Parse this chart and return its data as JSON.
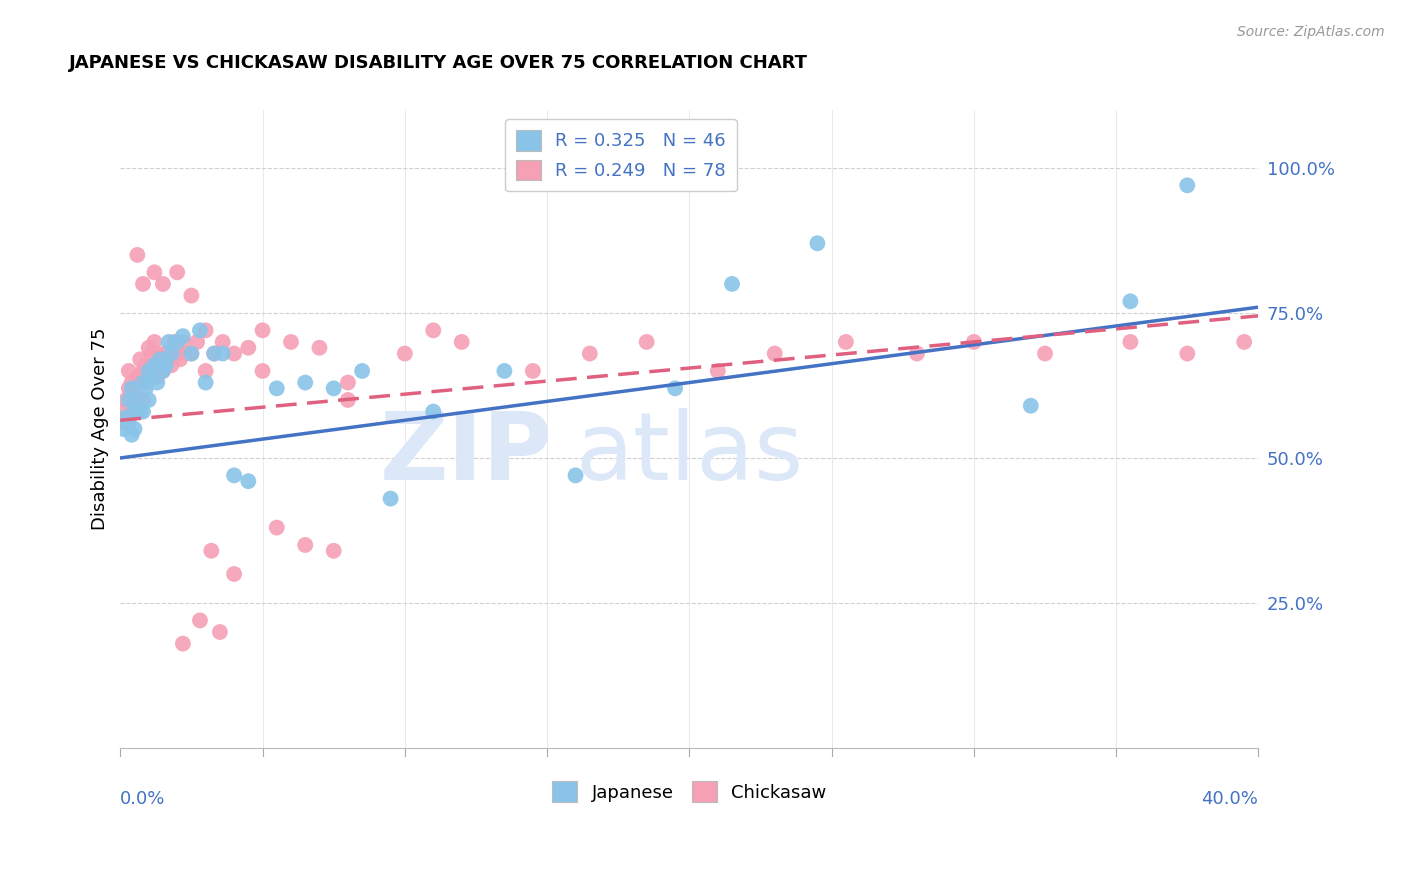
{
  "title": "JAPANESE VS CHICKASAW DISABILITY AGE OVER 75 CORRELATION CHART",
  "source": "Source: ZipAtlas.com",
  "ylabel": "Disability Age Over 75",
  "japanese_color": "#89c4e8",
  "chickasaw_color": "#f5a0b5",
  "japanese_line_color": "#4472c4",
  "chickasaw_line_color": "#e06080",
  "chickasaw_line_dash": [
    6,
    3
  ],
  "watermark_zip_color": "#dce8f8",
  "watermark_atlas_color": "#dce8f8",
  "xmin": 0.0,
  "xmax": 0.4,
  "ymin": 0.0,
  "ymax": 1.1,
  "ytick_values": [
    0.25,
    0.5,
    0.75,
    1.0
  ],
  "ytick_labels": [
    "25.0%",
    "50.0%",
    "75.0%",
    "100.0%"
  ],
  "grid_color": "#d0d0d0",
  "jp_line_x0": 0.0,
  "jp_line_y0": 0.5,
  "jp_line_x1": 0.4,
  "jp_line_y1": 0.76,
  "ck_line_x0": 0.0,
  "ck_line_y0": 0.565,
  "ck_line_x1": 0.4,
  "ck_line_y1": 0.745,
  "japanese_scatter_x": [
    0.001,
    0.002,
    0.003,
    0.003,
    0.004,
    0.004,
    0.005,
    0.005,
    0.006,
    0.007,
    0.008,
    0.008,
    0.009,
    0.01,
    0.01,
    0.011,
    0.012,
    0.013,
    0.014,
    0.015,
    0.016,
    0.017,
    0.018,
    0.02,
    0.022,
    0.025,
    0.028,
    0.03,
    0.033,
    0.036,
    0.04,
    0.045,
    0.055,
    0.065,
    0.075,
    0.085,
    0.095,
    0.11,
    0.135,
    0.16,
    0.195,
    0.215,
    0.245,
    0.32,
    0.355,
    0.375
  ],
  "japanese_scatter_y": [
    0.55,
    0.57,
    0.56,
    0.6,
    0.54,
    0.62,
    0.55,
    0.58,
    0.6,
    0.58,
    0.63,
    0.58,
    0.62,
    0.6,
    0.65,
    0.64,
    0.66,
    0.63,
    0.67,
    0.65,
    0.66,
    0.7,
    0.68,
    0.7,
    0.71,
    0.68,
    0.72,
    0.63,
    0.68,
    0.68,
    0.47,
    0.46,
    0.62,
    0.63,
    0.62,
    0.65,
    0.43,
    0.58,
    0.65,
    0.47,
    0.62,
    0.8,
    0.87,
    0.59,
    0.77,
    0.97
  ],
  "chickasaw_scatter_x": [
    0.001,
    0.002,
    0.002,
    0.003,
    0.003,
    0.004,
    0.004,
    0.005,
    0.005,
    0.006,
    0.006,
    0.007,
    0.007,
    0.008,
    0.008,
    0.009,
    0.009,
    0.01,
    0.01,
    0.011,
    0.011,
    0.012,
    0.012,
    0.013,
    0.013,
    0.014,
    0.015,
    0.016,
    0.017,
    0.018,
    0.019,
    0.02,
    0.021,
    0.022,
    0.023,
    0.025,
    0.027,
    0.03,
    0.033,
    0.036,
    0.04,
    0.045,
    0.05,
    0.06,
    0.07,
    0.08,
    0.1,
    0.12,
    0.145,
    0.165,
    0.185,
    0.21,
    0.23,
    0.255,
    0.28,
    0.3,
    0.325,
    0.355,
    0.375,
    0.395,
    0.006,
    0.008,
    0.012,
    0.015,
    0.02,
    0.025,
    0.03,
    0.05,
    0.08,
    0.11,
    0.032,
    0.04,
    0.055,
    0.065,
    0.075,
    0.035,
    0.028,
    0.022
  ],
  "chickasaw_scatter_y": [
    0.58,
    0.56,
    0.6,
    0.62,
    0.65,
    0.59,
    0.63,
    0.62,
    0.6,
    0.64,
    0.58,
    0.63,
    0.67,
    0.65,
    0.6,
    0.66,
    0.63,
    0.64,
    0.69,
    0.65,
    0.68,
    0.66,
    0.7,
    0.64,
    0.68,
    0.67,
    0.65,
    0.68,
    0.67,
    0.66,
    0.7,
    0.68,
    0.67,
    0.7,
    0.68,
    0.68,
    0.7,
    0.65,
    0.68,
    0.7,
    0.68,
    0.69,
    0.65,
    0.7,
    0.69,
    0.63,
    0.68,
    0.7,
    0.65,
    0.68,
    0.7,
    0.65,
    0.68,
    0.7,
    0.68,
    0.7,
    0.68,
    0.7,
    0.68,
    0.7,
    0.85,
    0.8,
    0.82,
    0.8,
    0.82,
    0.78,
    0.72,
    0.72,
    0.6,
    0.72,
    0.34,
    0.3,
    0.38,
    0.35,
    0.34,
    0.2,
    0.22,
    0.18
  ]
}
